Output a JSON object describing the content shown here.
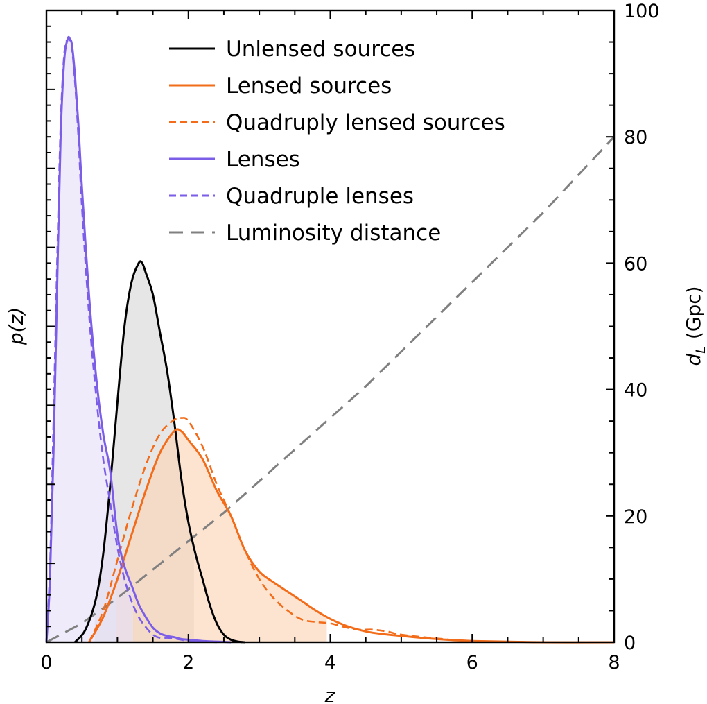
{
  "chart_data": {
    "type": "line",
    "xlabel": "z",
    "ylabel_left": "p(z)",
    "ylabel_right_main": "d",
    "ylabel_right_sub": "L",
    "ylabel_right_unit": "(Gpc)",
    "xlim": [
      0,
      8
    ],
    "ylim_left": [
      0,
      1
    ],
    "ylim_right": [
      0,
      100
    ],
    "x_ticks": [
      0,
      2,
      4,
      6,
      8
    ],
    "x_tick_labels": [
      "0",
      "2",
      "4",
      "6",
      "8"
    ],
    "right_ticks": [
      0,
      20,
      40,
      60,
      80,
      100
    ],
    "right_tick_labels": [
      "0",
      "20",
      "40",
      "60",
      "80",
      "100"
    ],
    "left_tick_labels_shown": false,
    "legend_position": "top-center",
    "series": [
      {
        "name": "Unlensed sources",
        "key": "unlensed",
        "color": "#000000",
        "style": "solid",
        "fill": "#d8d8d8",
        "shade_range": [
          0.68,
          2.08
        ],
        "x": [
          0.4,
          0.55,
          0.7,
          0.8,
          0.9,
          1.0,
          1.1,
          1.2,
          1.3,
          1.35,
          1.4,
          1.5,
          1.6,
          1.7,
          1.8,
          1.9,
          2.0,
          2.1,
          2.2,
          2.3,
          2.4,
          2.5,
          2.6,
          2.7,
          2.8
        ],
        "y": [
          0.0,
          0.02,
          0.07,
          0.14,
          0.25,
          0.38,
          0.5,
          0.57,
          0.6,
          0.6,
          0.585,
          0.55,
          0.49,
          0.43,
          0.35,
          0.26,
          0.19,
          0.14,
          0.1,
          0.06,
          0.03,
          0.012,
          0.004,
          0.001,
          0.0
        ]
      },
      {
        "name": "Lensed sources",
        "key": "lensed",
        "color": "#f26c1a",
        "style": "solid",
        "fill": "#fbd5b8",
        "shade_range": [
          0.98,
          3.95
        ],
        "x": [
          0.6,
          0.8,
          1.0,
          1.2,
          1.4,
          1.6,
          1.8,
          1.9,
          2.0,
          2.2,
          2.4,
          2.6,
          2.8,
          3.0,
          3.2,
          3.4,
          3.6,
          3.8,
          4.0,
          4.2,
          4.4,
          4.6,
          5.0,
          5.5,
          6.0,
          7.0,
          8.0
        ],
        "y": [
          0.0,
          0.04,
          0.1,
          0.17,
          0.24,
          0.3,
          0.334,
          0.334,
          0.32,
          0.29,
          0.24,
          0.2,
          0.145,
          0.112,
          0.095,
          0.08,
          0.065,
          0.05,
          0.037,
          0.027,
          0.02,
          0.015,
          0.01,
          0.005,
          0.002,
          0.0,
          0.0
        ]
      },
      {
        "name": "Quadruply lensed sources",
        "key": "quad_sources",
        "color": "#f26c1a",
        "style": "dashed",
        "fill": "",
        "shade_range": [],
        "x": [
          0.6,
          0.8,
          1.0,
          1.2,
          1.4,
          1.6,
          1.8,
          1.9,
          2.0,
          2.2,
          2.4,
          2.6,
          2.8,
          3.0,
          3.2,
          3.4,
          3.6,
          3.8,
          4.0,
          4.2,
          4.4,
          4.6,
          4.8,
          5.0,
          5.5,
          6.0,
          7.0,
          8.0
        ],
        "y": [
          0.0,
          0.05,
          0.13,
          0.21,
          0.28,
          0.33,
          0.352,
          0.355,
          0.35,
          0.31,
          0.25,
          0.2,
          0.145,
          0.1,
          0.07,
          0.05,
          0.036,
          0.032,
          0.03,
          0.024,
          0.02,
          0.02,
          0.017,
          0.012,
          0.006,
          0.002,
          0.0,
          0.0
        ]
      },
      {
        "name": "Lenses",
        "key": "lenses",
        "color": "#7b5de8",
        "style": "solid",
        "fill": "#e6e0f8",
        "shade_range": [
          0.0,
          1.22
        ],
        "x": [
          0.0,
          0.05,
          0.1,
          0.15,
          0.2,
          0.25,
          0.3,
          0.33,
          0.36,
          0.4,
          0.45,
          0.5,
          0.6,
          0.7,
          0.8,
          0.9,
          1.0,
          1.1,
          1.2,
          1.3,
          1.4,
          1.5,
          1.6,
          1.7,
          1.8,
          1.9,
          2.0,
          2.2,
          2.4,
          2.6
        ],
        "y": [
          0.0,
          0.1,
          0.3,
          0.56,
          0.8,
          0.92,
          0.955,
          0.955,
          0.945,
          0.9,
          0.82,
          0.72,
          0.55,
          0.42,
          0.33,
          0.27,
          0.17,
          0.12,
          0.09,
          0.06,
          0.04,
          0.023,
          0.014,
          0.01,
          0.008,
          0.005,
          0.004,
          0.002,
          0.001,
          0.0
        ]
      },
      {
        "name": "Quadruple lenses",
        "key": "quad_lenses",
        "color": "#7b5de8",
        "style": "dashed",
        "fill": "",
        "shade_range": [],
        "x": [
          0.0,
          0.05,
          0.1,
          0.15,
          0.2,
          0.25,
          0.3,
          0.33,
          0.36,
          0.4,
          0.45,
          0.5,
          0.6,
          0.7,
          0.8,
          0.9,
          1.0,
          1.1,
          1.2,
          1.3,
          1.4,
          1.5,
          1.6,
          1.7,
          1.8,
          1.9,
          2.0,
          2.2,
          2.4
        ],
        "y": [
          0.0,
          0.12,
          0.35,
          0.6,
          0.82,
          0.93,
          0.955,
          0.952,
          0.94,
          0.89,
          0.8,
          0.69,
          0.52,
          0.39,
          0.29,
          0.22,
          0.15,
          0.1,
          0.065,
          0.04,
          0.024,
          0.012,
          0.007,
          0.007,
          0.006,
          0.004,
          0.002,
          0.001,
          0.0
        ]
      },
      {
        "name": "Luminosity distance",
        "key": "dl",
        "color": "#808080",
        "style": "longdash",
        "axis": "right",
        "fill": "",
        "shade_range": [],
        "x": [
          0.0,
          0.5,
          1.0,
          1.5,
          2.0,
          2.5,
          3.0,
          3.5,
          4.0,
          4.5,
          5.0,
          5.5,
          6.0,
          6.5,
          7.0,
          7.5,
          8.0
        ],
        "y": [
          0.0,
          3.0,
          7.0,
          11.5,
          16.0,
          20.5,
          25.5,
          30.5,
          35.5,
          40.5,
          46.0,
          51.5,
          57.0,
          62.5,
          68.0,
          74.0,
          80.0
        ]
      }
    ]
  }
}
